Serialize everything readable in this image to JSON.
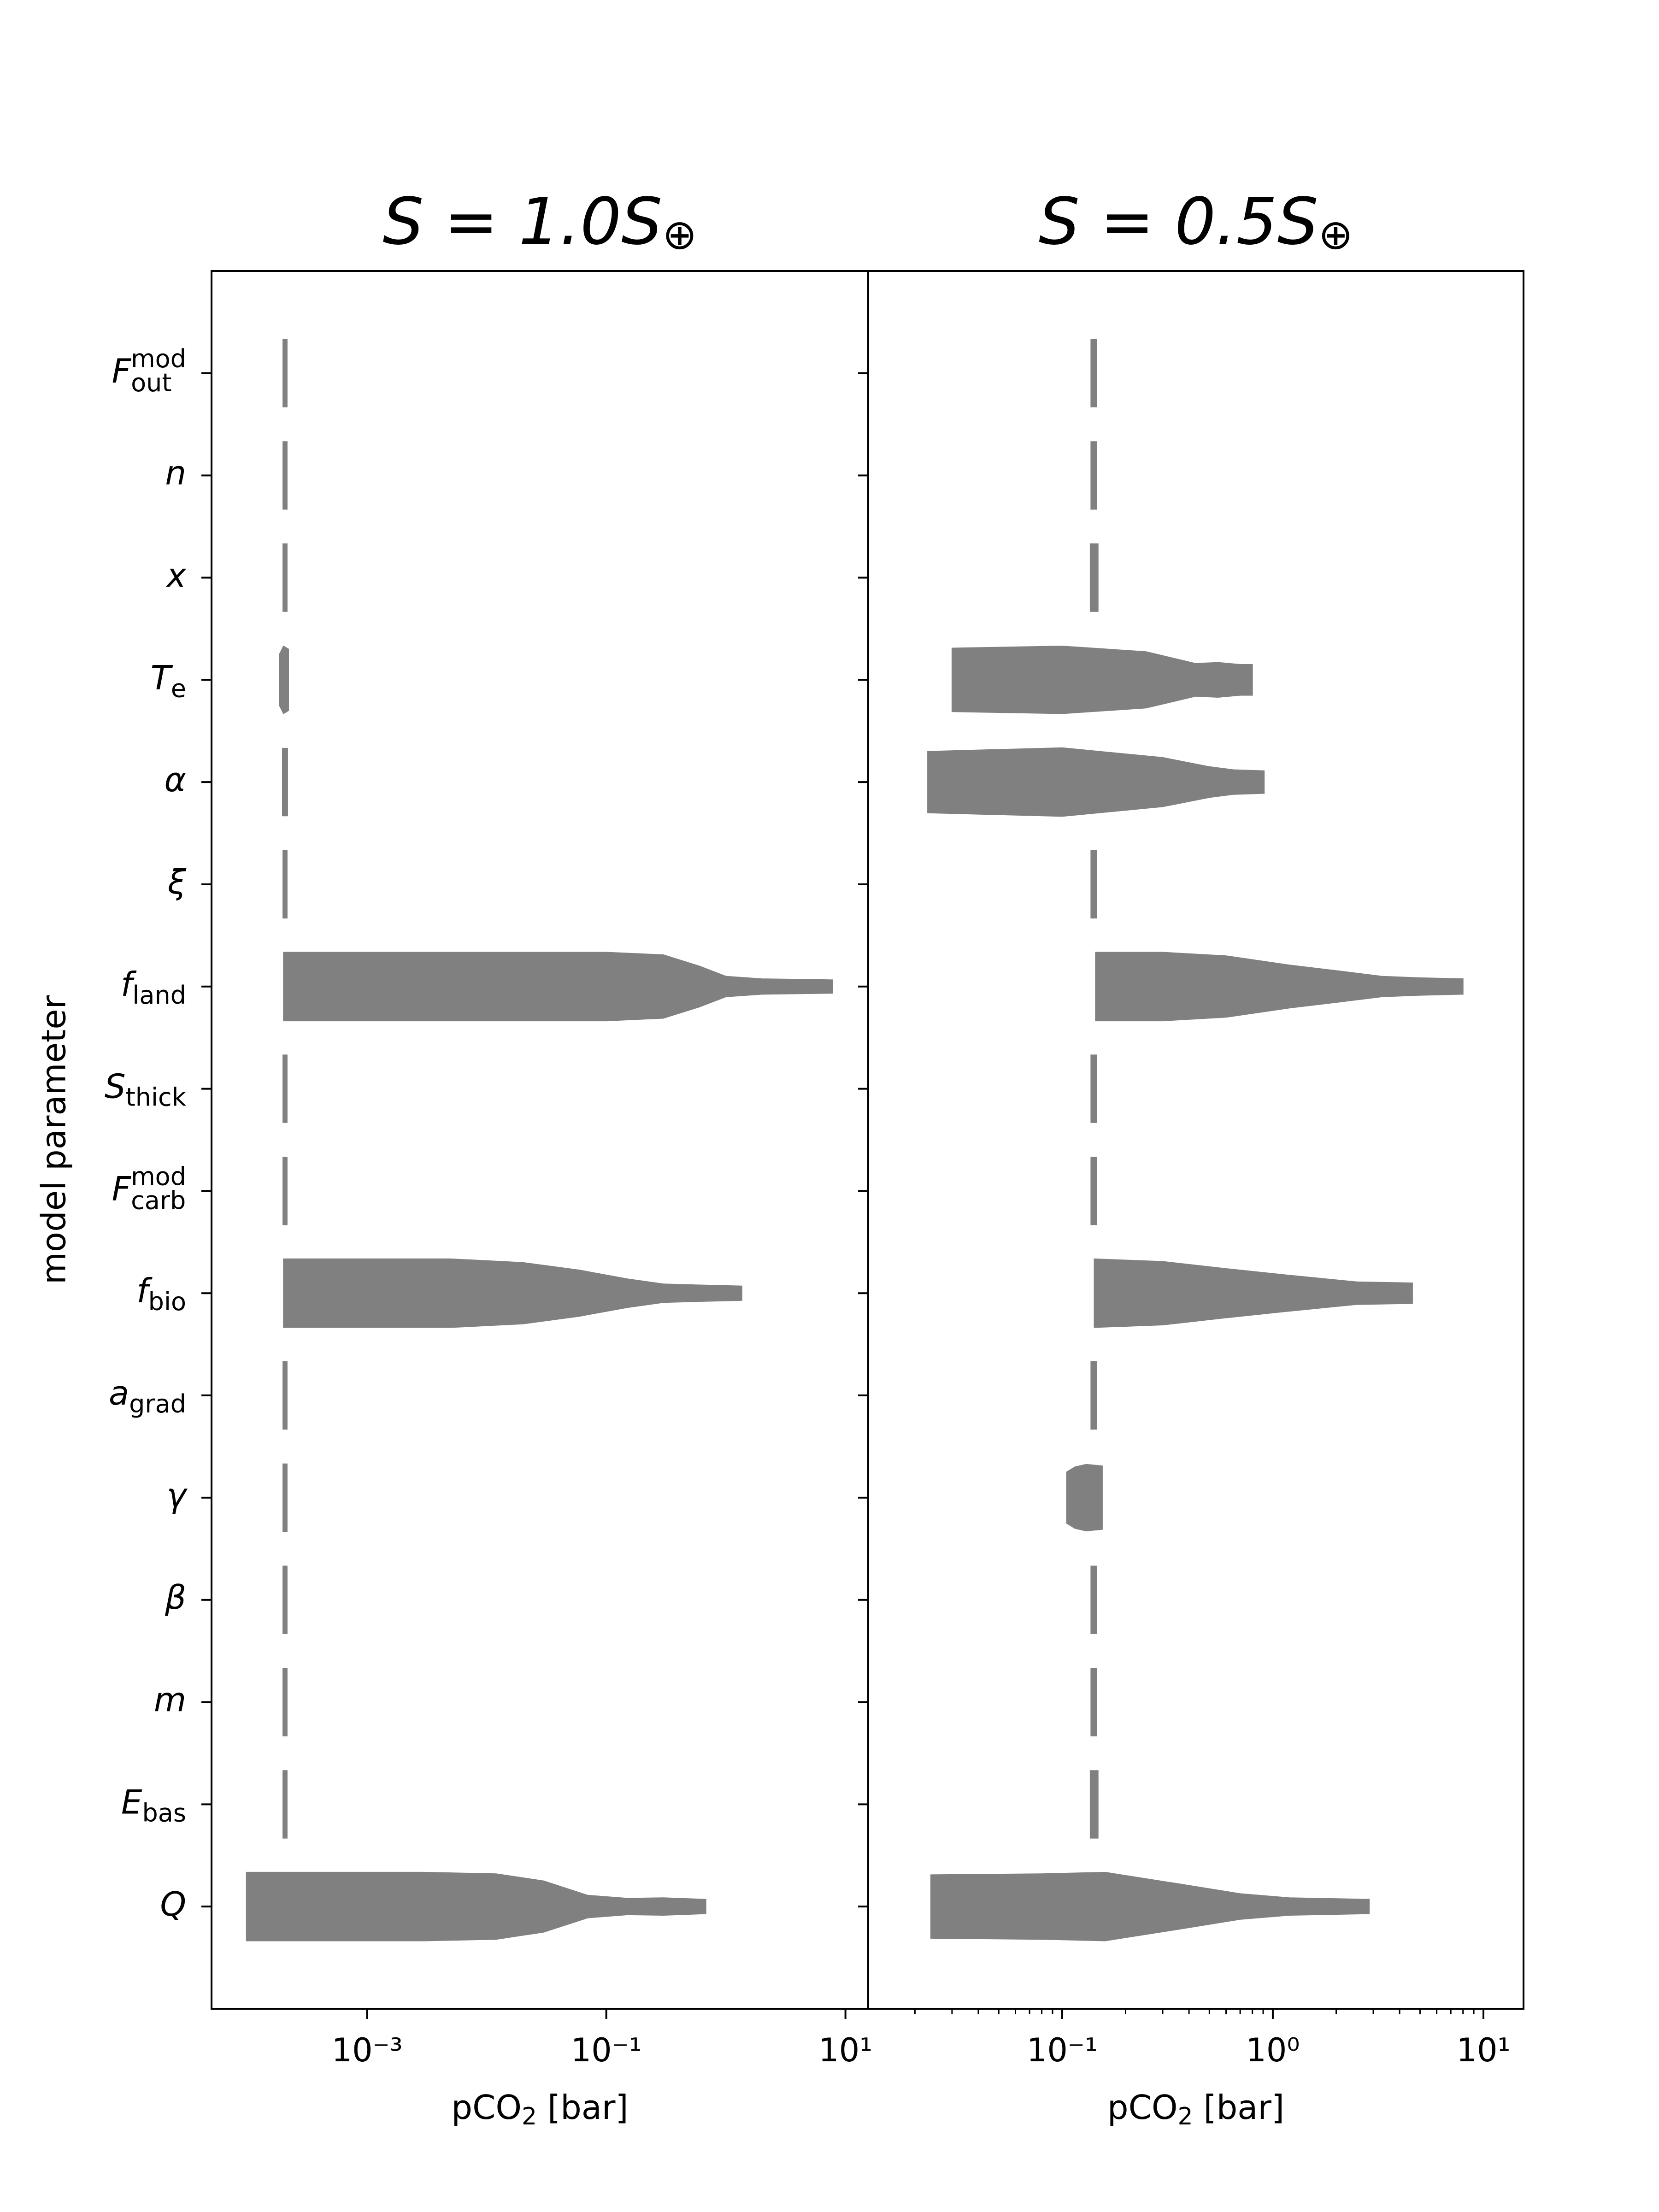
{
  "chart_data": [
    {
      "type": "violin",
      "title": {
        "main": "S = 1.0S",
        "sub": "⊕"
      },
      "ylabel": "model parameter",
      "xlabel": {
        "main": "pCO",
        "sub": "2",
        "tail": " [bar]"
      },
      "xscale": "log",
      "xlim": [
        5e-05,
        15.5
      ],
      "xticks": [
        {
          "value": 0.001,
          "label": "10⁻³"
        },
        {
          "value": 0.1,
          "label": "10⁻¹"
        },
        {
          "value": 10,
          "label": "10¹"
        }
      ],
      "color": "#808080",
      "categories": [
        {
          "main": "F",
          "sub": "out",
          "sup": "mod"
        },
        {
          "main": "n"
        },
        {
          "main": "x"
        },
        {
          "main": "T",
          "sub": "e"
        },
        {
          "main": "α"
        },
        {
          "main": "ξ"
        },
        {
          "main": "f",
          "sub": "land"
        },
        {
          "main": "S",
          "sub": "thick"
        },
        {
          "main": "F",
          "sub": "carb",
          "sup": "mod"
        },
        {
          "main": "f",
          "sub": "bio"
        },
        {
          "main": "a",
          "sub": "grad"
        },
        {
          "main": "γ"
        },
        {
          "main": "β"
        },
        {
          "main": "m"
        },
        {
          "main": "E",
          "sub": "bas"
        },
        {
          "main": "Q"
        }
      ],
      "violins": [
        {
          "x": [
            0.000198,
            0.000214
          ],
          "widths": [
            0.66,
            0.66
          ]
        },
        {
          "x": [
            0.000198,
            0.000214
          ],
          "widths": [
            0.66,
            0.66
          ]
        },
        {
          "x": [
            0.000198,
            0.000214
          ],
          "widths": [
            0.66,
            0.66
          ]
        },
        {
          "x": [
            0.000185,
            0.0002,
            0.00022
          ],
          "widths": [
            0.5,
            0.66,
            0.6
          ]
        },
        {
          "x": [
            0.000196,
            0.000216
          ],
          "widths": [
            0.66,
            0.66
          ]
        },
        {
          "x": [
            0.000198,
            0.000214
          ],
          "widths": [
            0.66,
            0.66
          ]
        },
        {
          "x": [
            0.0002,
            0.01,
            0.1,
            0.3,
            0.6,
            1.0,
            2,
            7.8
          ],
          "widths": [
            0.67,
            0.67,
            0.67,
            0.62,
            0.4,
            0.2,
            0.15,
            0.13
          ]
        },
        {
          "x": [
            0.000198,
            0.000214
          ],
          "widths": [
            0.66,
            0.66
          ]
        },
        {
          "x": [
            0.000198,
            0.000214
          ],
          "widths": [
            0.66,
            0.66
          ]
        },
        {
          "x": [
            0.0002,
            0.005,
            0.02,
            0.06,
            0.15,
            0.3,
            0.6,
            1.36
          ],
          "widths": [
            0.67,
            0.67,
            0.6,
            0.45,
            0.28,
            0.18,
            0.16,
            0.14
          ]
        },
        {
          "x": [
            0.000198,
            0.000214
          ],
          "widths": [
            0.66,
            0.66
          ]
        },
        {
          "x": [
            0.000198,
            0.000214
          ],
          "widths": [
            0.66,
            0.66
          ]
        },
        {
          "x": [
            0.000198,
            0.000214
          ],
          "widths": [
            0.66,
            0.66
          ]
        },
        {
          "x": [
            0.000198,
            0.000214
          ],
          "widths": [
            0.66,
            0.66
          ]
        },
        {
          "x": [
            0.000198,
            0.000214
          ],
          "widths": [
            0.66,
            0.66
          ]
        },
        {
          "x": [
            9.8e-05,
            0.003,
            0.012,
            0.03,
            0.07,
            0.15,
            0.3,
            0.68
          ],
          "widths": [
            0.67,
            0.67,
            0.64,
            0.5,
            0.22,
            0.16,
            0.17,
            0.14
          ]
        }
      ]
    },
    {
      "type": "violin",
      "title": {
        "main": "S = 0.5S",
        "sub": "⊕"
      },
      "xlabel": {
        "main": "pCO",
        "sub": "2",
        "tail": " [bar]"
      },
      "xscale": "log",
      "xlim": [
        0.012,
        15.5
      ],
      "xticks": [
        {
          "value": 0.1,
          "label": "10⁻¹"
        },
        {
          "value": 1,
          "label": "10⁰"
        },
        {
          "value": 10,
          "label": "10¹"
        }
      ],
      "xticks_minor": [
        0.02,
        0.03,
        0.04,
        0.05,
        0.06,
        0.07,
        0.08,
        0.09,
        0.2,
        0.3,
        0.4,
        0.5,
        0.6,
        0.7,
        0.8,
        0.9,
        2,
        3,
        4,
        5,
        6,
        7,
        8,
        9
      ],
      "color": "#808080",
      "violins": [
        {
          "x": [
            0.137,
            0.146
          ],
          "widths": [
            0.66,
            0.66
          ]
        },
        {
          "x": [
            0.137,
            0.146
          ],
          "widths": [
            0.66,
            0.66
          ]
        },
        {
          "x": [
            0.136,
            0.148
          ],
          "widths": [
            0.66,
            0.66
          ]
        },
        {
          "x": [
            0.03,
            0.1,
            0.25,
            0.43,
            0.55,
            0.7,
            0.8
          ],
          "widths": [
            0.62,
            0.66,
            0.55,
            0.32,
            0.34,
            0.3,
            0.3
          ]
        },
        {
          "x": [
            0.023,
            0.1,
            0.3,
            0.5,
            0.65,
            0.91
          ],
          "widths": [
            0.6,
            0.67,
            0.48,
            0.3,
            0.24,
            0.22
          ]
        },
        {
          "x": [
            0.137,
            0.146
          ],
          "widths": [
            0.66,
            0.66
          ]
        },
        {
          "x": [
            0.144,
            0.3,
            0.6,
            1.2,
            2.1,
            3.3,
            5,
            8.0
          ],
          "widths": [
            0.67,
            0.67,
            0.6,
            0.42,
            0.3,
            0.2,
            0.17,
            0.15
          ]
        },
        {
          "x": [
            0.137,
            0.146
          ],
          "widths": [
            0.66,
            0.66
          ]
        },
        {
          "x": [
            0.137,
            0.146
          ],
          "widths": [
            0.66,
            0.66
          ]
        },
        {
          "x": [
            0.142,
            0.3,
            0.6,
            1.2,
            2.5,
            4.6
          ],
          "widths": [
            0.67,
            0.62,
            0.48,
            0.35,
            0.22,
            0.2
          ]
        },
        {
          "x": [
            0.137,
            0.146
          ],
          "widths": [
            0.66,
            0.66
          ]
        },
        {
          "x": [
            0.105,
            0.115,
            0.13,
            0.155
          ],
          "widths": [
            0.5,
            0.6,
            0.65,
            0.62
          ]
        },
        {
          "x": [
            0.137,
            0.146
          ],
          "widths": [
            0.66,
            0.66
          ]
        },
        {
          "x": [
            0.137,
            0.146
          ],
          "widths": [
            0.66,
            0.66
          ]
        },
        {
          "x": [
            0.136,
            0.148
          ],
          "widths": [
            0.66,
            0.66
          ]
        },
        {
          "x": [
            0.0238,
            0.08,
            0.16,
            0.35,
            0.7,
            1.2,
            2.87
          ],
          "widths": [
            0.62,
            0.64,
            0.67,
            0.45,
            0.25,
            0.17,
            0.14
          ]
        }
      ]
    }
  ]
}
